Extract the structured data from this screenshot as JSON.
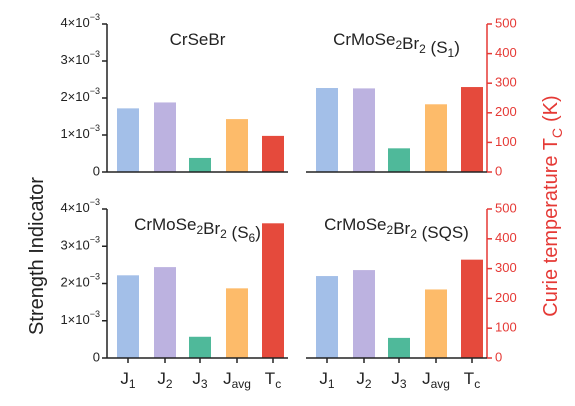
{
  "figure": {
    "left_axis_label": "Strength Indicator",
    "right_axis_label": "Curie temperature T",
    "right_axis_label_sub": "C",
    "right_axis_label_unit": "(K)"
  },
  "chart_data": [
    {
      "type": "bar",
      "title": "CrSeBr",
      "categories": [
        "J1",
        "J2",
        "J3",
        "Javg",
        "Tc"
      ],
      "strength_values": [
        0.00172,
        0.00188,
        0.00038,
        0.00143
      ],
      "tc_value": 122,
      "left_ylim": [
        0,
        0.004
      ],
      "left_ticks": [
        "0",
        "1×10−3",
        "2×10−3",
        "3×10−3",
        "4×10−3"
      ],
      "right_ylim": [
        0,
        500
      ],
      "right_ticks": []
    },
    {
      "type": "bar",
      "title": "CrMoSe2Br2 (S1)",
      "categories": [
        "J1",
        "J2",
        "J3",
        "Javg",
        "Tc"
      ],
      "strength_values": [
        0.00227,
        0.00226,
        0.00064,
        0.00183
      ],
      "tc_value": 287,
      "left_ylim": [
        0,
        0.004
      ],
      "left_ticks": [],
      "right_ylim": [
        0,
        500
      ],
      "right_ticks": [
        "0",
        "100",
        "200",
        "300",
        "400",
        "500"
      ]
    },
    {
      "type": "bar",
      "title": "CrMoSe2Br2 (S6)",
      "categories": [
        "J1",
        "J2",
        "J3",
        "Javg",
        "Tc"
      ],
      "strength_values": [
        0.00222,
        0.00244,
        0.00057,
        0.00187
      ],
      "tc_value": 452,
      "left_ylim": [
        0,
        0.004
      ],
      "left_ticks": [
        "0",
        "1×10−3",
        "2×10−3",
        "3×10−3",
        "4×10−3"
      ],
      "right_ylim": [
        0,
        500
      ],
      "right_ticks": []
    },
    {
      "type": "bar",
      "title": "CrMoSe2Br2 (SQS)",
      "categories": [
        "J1",
        "J2",
        "J3",
        "Javg",
        "Tc"
      ],
      "strength_values": [
        0.0022,
        0.00236,
        0.00054,
        0.00184
      ],
      "tc_value": 330,
      "left_ylim": [
        0,
        0.004
      ],
      "left_ticks": [],
      "right_ylim": [
        0,
        500
      ],
      "right_ticks": [
        "0",
        "100",
        "200",
        "300",
        "400",
        "500"
      ]
    }
  ],
  "colors": {
    "J1": "#a3bfe8",
    "J2": "#bcb2e0",
    "J3": "#4fb99a",
    "Javg": "#fdbb6a",
    "Tc": "#e54a3c",
    "axis": "#222222",
    "right_axis": "#e53935"
  }
}
